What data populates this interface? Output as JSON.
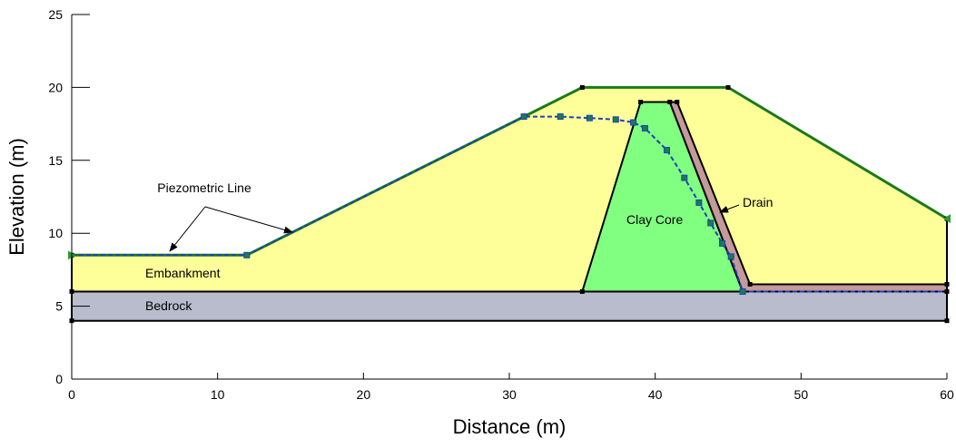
{
  "xlabel": "Distance (m)",
  "ylabel": "Elevation (m)",
  "x_ticks": [
    "0",
    "10",
    "20",
    "30",
    "40",
    "50",
    "60"
  ],
  "y_ticks": [
    "0",
    "5",
    "10",
    "15",
    "20",
    "25"
  ],
  "labels": {
    "piezometric": "Piezometric Line",
    "embankment": "Embankment",
    "bedrock": "Bedrock",
    "clay_core": "Clay Core",
    "drain": "Drain"
  },
  "colors": {
    "embankment": "#ffff99",
    "bedrock": "#b8bccc",
    "clay_core": "#80ff80",
    "drain": "#c49a9a",
    "ground_surface": "#1a7a1a",
    "piezometric": "#1f3fbf"
  },
  "chart_data": {
    "type": "diagram",
    "xlim": [
      0,
      60
    ],
    "ylim": [
      0,
      25
    ],
    "regions": [
      {
        "name": "Bedrock",
        "points": [
          [
            0,
            4
          ],
          [
            60,
            4
          ],
          [
            60,
            6
          ],
          [
            0,
            6
          ]
        ]
      },
      {
        "name": "Embankment",
        "points": [
          [
            0,
            6
          ],
          [
            0,
            8.5
          ],
          [
            12,
            8.5
          ],
          [
            31,
            18
          ],
          [
            35,
            20
          ],
          [
            45,
            20
          ],
          [
            60,
            11
          ],
          [
            60,
            6.5
          ],
          [
            46.5,
            6.5
          ],
          [
            46,
            6
          ],
          [
            35,
            6
          ]
        ]
      },
      {
        "name": "Clay Core",
        "points": [
          [
            35,
            6
          ],
          [
            39,
            19
          ],
          [
            41,
            19
          ],
          [
            46,
            6
          ]
        ]
      },
      {
        "name": "Drain",
        "points": [
          [
            41,
            19
          ],
          [
            41.5,
            19
          ],
          [
            46.5,
            6.5
          ],
          [
            60,
            6.5
          ],
          [
            60,
            6
          ],
          [
            46,
            6
          ]
        ]
      }
    ],
    "ground_surface": [
      [
        0,
        8.5
      ],
      [
        12,
        8.5
      ],
      [
        31,
        18
      ],
      [
        35,
        20
      ],
      [
        45,
        20
      ],
      [
        60,
        11
      ]
    ],
    "piezometric_line": [
      [
        0,
        8.5
      ],
      [
        12,
        8.5
      ],
      [
        31,
        18
      ],
      [
        33.5,
        18
      ],
      [
        35.5,
        17.9
      ],
      [
        37.3,
        17.8
      ],
      [
        38.5,
        17.6
      ],
      [
        39.3,
        17.2
      ],
      [
        40.8,
        15.7
      ],
      [
        42,
        13.8
      ],
      [
        43,
        12.1
      ],
      [
        43.8,
        10.7
      ],
      [
        44.6,
        9.3
      ],
      [
        45.2,
        8.4
      ],
      [
        46,
        6
      ],
      [
        60,
        6
      ]
    ]
  }
}
